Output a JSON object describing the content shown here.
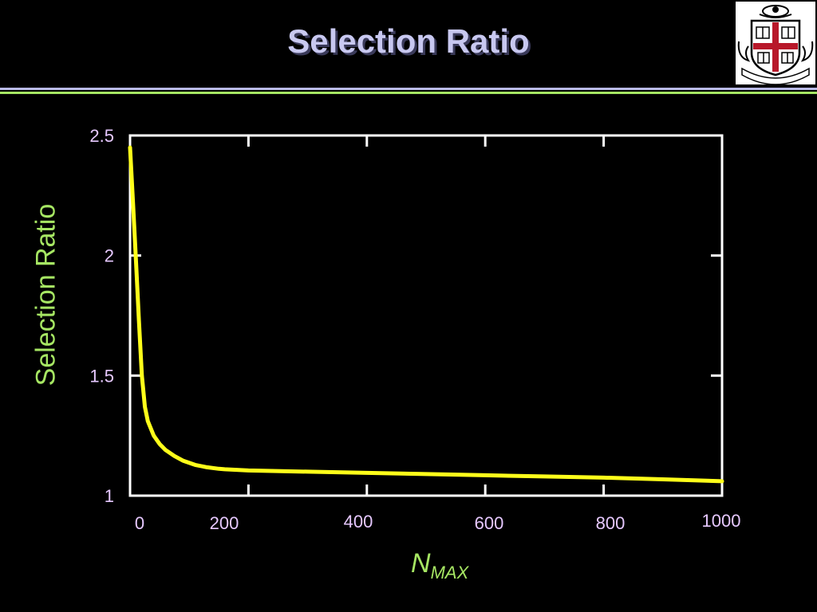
{
  "slide": {
    "title": "Selection Ratio",
    "logo_text": "IN DEO SPERAMUS"
  },
  "colors": {
    "background": "#000000",
    "title": "#c8c8f0",
    "axis_label": "#a6e663",
    "tick_label": "#e6c8ff",
    "frame": "#ffffff",
    "line": "#ffff1a",
    "divider_blue": "#b9b9e6",
    "divider_green": "#a6e663",
    "crest_red": "#b8182a"
  },
  "chart_data": {
    "type": "line",
    "title": "",
    "ylabel": "Selection Ratio",
    "xlabel_main": "N",
    "xlabel_sub": "MAX",
    "xlim": [
      0,
      1000
    ],
    "ylim": [
      1,
      2.5
    ],
    "xticks": [
      {
        "value": 0,
        "label": "0"
      },
      {
        "value": 200,
        "label": "200"
      },
      {
        "value": 400,
        "label": "400"
      },
      {
        "value": 600,
        "label": "600"
      },
      {
        "value": 800,
        "label": "800"
      },
      {
        "value": 1000,
        "label": "1000"
      }
    ],
    "yticks": [
      {
        "value": 1,
        "label": "1"
      },
      {
        "value": 1.5,
        "label": "1.5"
      },
      {
        "value": 2,
        "label": "2"
      },
      {
        "value": 2.5,
        "label": "2.5"
      }
    ],
    "grid": false,
    "legend": "none",
    "series": [
      {
        "x": [
          0,
          5,
          10,
          15,
          20,
          25,
          30,
          40,
          50,
          60,
          75,
          90,
          110,
          130,
          150,
          160,
          200,
          300,
          400,
          500,
          600,
          700,
          800,
          900,
          1000
        ],
        "y": [
          2.45,
          2.22,
          1.98,
          1.73,
          1.5,
          1.37,
          1.31,
          1.25,
          1.215,
          1.19,
          1.165,
          1.145,
          1.128,
          1.118,
          1.112,
          1.11,
          1.105,
          1.1,
          1.095,
          1.09,
          1.085,
          1.08,
          1.075,
          1.068,
          1.06
        ]
      }
    ]
  }
}
